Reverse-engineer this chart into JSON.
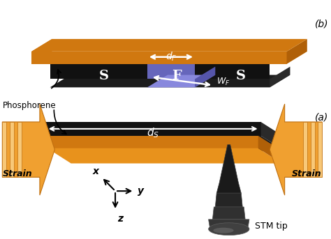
{
  "bg_color": "#ffffff",
  "orange_top": "#E8921C",
  "orange_side": "#D07810",
  "orange_dark": "#B06008",
  "black_top": "#1C1C1C",
  "black_side": "#2A2A2A",
  "black_front": "#111111",
  "blue_top": "#8888DD",
  "blue_front": "#6666BB",
  "blue_side": "#5555AA",
  "white": "#FFFFFF",
  "label_a": "(a)",
  "label_b": "(b)",
  "strain_label": "Strain",
  "phosphorene_label": "Phosphorene",
  "stm_label": "STM tip",
  "ds_label": "$d_S$",
  "df_label": "$d_F$",
  "wf_label": "$W_F$",
  "s_label": "S",
  "f_label": "F",
  "axis_z": "z",
  "axis_y": "y",
  "axis_x": "x",
  "arrow_color": "#F0A030",
  "arrow_edge": "#C07010",
  "arrow_light": "#F8C878"
}
